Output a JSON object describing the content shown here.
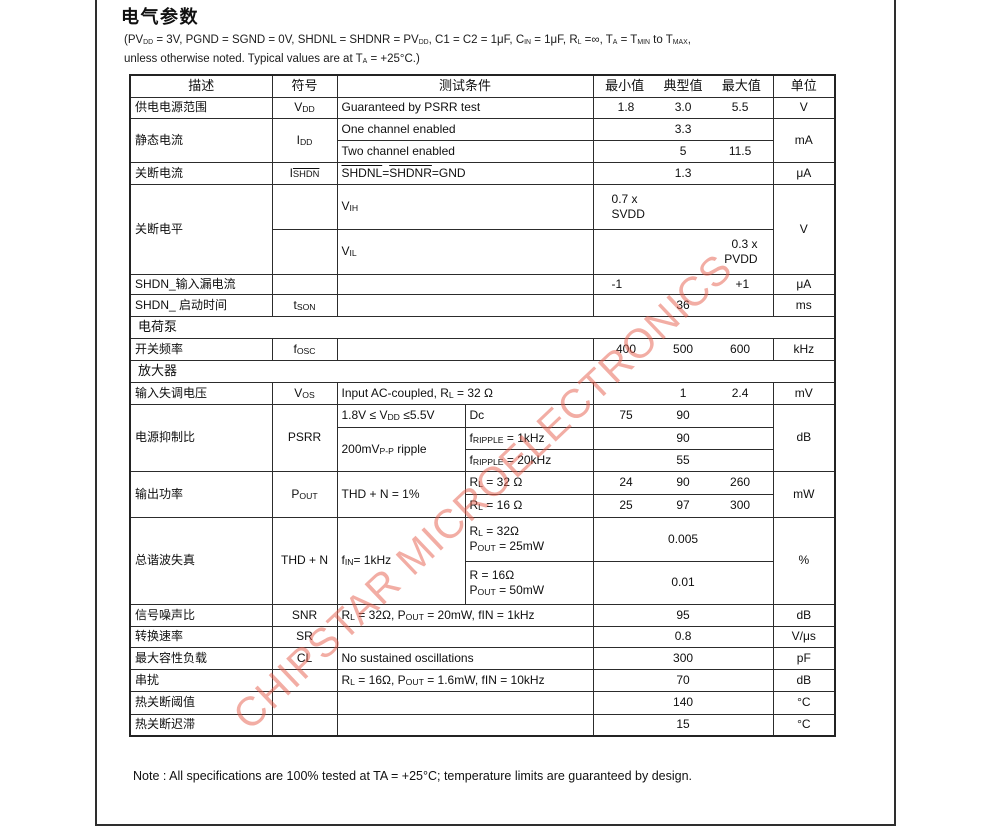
{
  "page": {
    "title": "电气参数",
    "subtitle_line1": [
      {
        "t": "(PV"
      },
      {
        "sub": "DD"
      },
      {
        "t": " = 3V, PGND = SGND = 0V, SHDNL = SHDNR = PV"
      },
      {
        "sub": "DD"
      },
      {
        "t": ", C1 = C2 = 1μF, C"
      },
      {
        "sub": "IN"
      },
      {
        "t": " = 1μF, R"
      },
      {
        "sub": "L"
      },
      {
        "t": " =∞, T"
      },
      {
        "sub": "A"
      },
      {
        "t": " = T"
      },
      {
        "sub": "MIN"
      },
      {
        "t": " to T"
      },
      {
        "sub": "MAX"
      },
      {
        "t": ","
      }
    ],
    "subtitle_line2": [
      {
        "t": "unless otherwise noted. Typical values are at T"
      },
      {
        "sub": "A"
      },
      {
        "t": " = +25°C.)"
      }
    ],
    "note": "Note : All specifications are 100% tested at TA = +25°C; temperature limits are guaranteed by design.",
    "watermark": "CHIPSTAR MICROELECTRONICS",
    "watermark_color": "#e75d4b"
  },
  "table": {
    "headers": {
      "desc": "描述",
      "symbol": "符号",
      "conditions": "测试条件",
      "min": "最小值",
      "typ": "典型值",
      "max": "最大值",
      "unit": "单位"
    },
    "sections": {
      "charge_pump": "电荷泵",
      "amplifier": "放大器"
    },
    "rows": {
      "vdd": {
        "desc": "供电电源范围",
        "symbol": [
          {
            "t": "V"
          },
          {
            "sub": "DD"
          }
        ],
        "cond": [
          {
            "t": "Guaranteed by PSRR test"
          }
        ],
        "min": "1.8",
        "typ": "3.0",
        "max": "5.5",
        "unit": "V"
      },
      "idd1": {
        "desc": "静态电流",
        "symbol": [
          {
            "t": "I"
          },
          {
            "sub": "DD"
          }
        ],
        "cond": [
          {
            "t": "One channel enabled"
          }
        ],
        "typ": "3.3",
        "unit": "mA"
      },
      "idd2": {
        "cond": [
          {
            "t": "Two channel enabled"
          }
        ],
        "typ": "5",
        "max": "11.5"
      },
      "ishdn": {
        "desc": "关断电流",
        "symbol": [
          {
            "t": "I"
          },
          {
            "ovs": "SHDN"
          }
        ],
        "cond": [
          {
            "ov": "SHDNL"
          },
          {
            "t": "="
          },
          {
            "ov": "SHDNR"
          },
          {
            "t": "=GND"
          }
        ],
        "typ": "1.3",
        "unit": "μA"
      },
      "vih": {
        "desc": "关断电平",
        "cond": [
          {
            "t": "V"
          },
          {
            "sub": "IH"
          }
        ],
        "min": "0.7 x\nSVDD",
        "unit": "V"
      },
      "vil": {
        "cond": [
          {
            "t": "V"
          },
          {
            "sub": "IL"
          }
        ],
        "max": "0.3 x\nPVDD"
      },
      "leak": {
        "desc": "SHDN_输入漏电流",
        "min": "-1",
        "max": "+1",
        "unit": "μA"
      },
      "tson": {
        "desc": "SHDN_ 启动时间",
        "symbol": [
          {
            "t": "t"
          },
          {
            "sub": "SON"
          }
        ],
        "typ": "36",
        "unit": "ms"
      },
      "fosc": {
        "desc": "开关频率",
        "symbol": [
          {
            "t": "f"
          },
          {
            "sub": "OSC"
          }
        ],
        "min": "400",
        "typ": "500",
        "max": "600",
        "unit": "kHz"
      },
      "vos": {
        "desc": "输入失调电压",
        "symbol": [
          {
            "t": "V"
          },
          {
            "sub": "OS"
          }
        ],
        "cond": [
          {
            "t": "Input AC-coupled, R"
          },
          {
            "sub": "L"
          },
          {
            "t": " = 32 Ω"
          }
        ],
        "typ": "1",
        "max": "2.4",
        "unit": "mV"
      },
      "psrr1": {
        "desc": "电源抑制比",
        "symbol": [
          {
            "t": "PSRR"
          }
        ],
        "condL": [
          {
            "t": "1.8V ≤ V"
          },
          {
            "sub": "DD"
          },
          {
            "t": " ≤5.5V"
          }
        ],
        "condR": [
          {
            "t": "Dc"
          }
        ],
        "min": "75",
        "typ": "90",
        "unit": "dB"
      },
      "psrr2": {
        "condL": [
          {
            "t": "200mV"
          },
          {
            "sub": "P-P"
          },
          {
            "t": " ripple"
          }
        ],
        "condR": [
          {
            "t": "f"
          },
          {
            "sub": "RIPPLE"
          },
          {
            "t": " = 1kHz"
          }
        ],
        "typ": "90"
      },
      "psrr3": {
        "condR": [
          {
            "t": "f"
          },
          {
            "sub": "RIPPLE"
          },
          {
            "t": " = 20kHz"
          }
        ],
        "typ": "55"
      },
      "pout1": {
        "desc": "输出功率",
        "symbol": [
          {
            "t": "P"
          },
          {
            "sub": "OUT"
          }
        ],
        "condL": [
          {
            "t": "THD + N = 1%"
          }
        ],
        "condR": [
          {
            "t": "R"
          },
          {
            "sub": "L"
          },
          {
            "t": " = 32 Ω"
          }
        ],
        "min": "24",
        "typ": "90",
        "max": "260",
        "unit": "mW"
      },
      "pout2": {
        "condR": [
          {
            "t": "R"
          },
          {
            "sub": "L"
          },
          {
            "t": " = 16 Ω"
          }
        ],
        "min": "25",
        "typ": "97",
        "max": "300"
      },
      "thd1": {
        "desc": "总谐波失真",
        "symbol": [
          {
            "t": "THD + N"
          }
        ],
        "condL": [
          {
            "t": "f"
          },
          {
            "sub": "IN"
          },
          {
            "t": "= 1kHz"
          }
        ],
        "condR": [
          {
            "t": "R"
          },
          {
            "sub": "L"
          },
          {
            "t": " = 32Ω"
          },
          {
            "br": 1
          },
          {
            "t": "P"
          },
          {
            "sub": "OUT"
          },
          {
            "t": " = 25mW"
          }
        ],
        "typ": "0.005",
        "unit": "%"
      },
      "thd2": {
        "condR": [
          {
            "t": "R  = 16Ω"
          },
          {
            "br": 1
          },
          {
            "t": "P"
          },
          {
            "sub": "OUT"
          },
          {
            "t": " = 50mW"
          }
        ],
        "typ": "0.01"
      },
      "snr": {
        "desc": "信号噪声比",
        "symbol": [
          {
            "t": "SNR"
          }
        ],
        "cond": [
          {
            "t": "R"
          },
          {
            "sub": "L"
          },
          {
            "t": " = 32Ω, P"
          },
          {
            "sub": "OUT"
          },
          {
            "t": " = 20mW, fIN = 1kHz"
          }
        ],
        "typ": "95",
        "unit": "dB"
      },
      "sr": {
        "desc": "转换速率",
        "symbol": [
          {
            "t": "SR"
          }
        ],
        "typ": "0.8",
        "unit": "V/μs"
      },
      "cl": {
        "desc": "最大容性负载",
        "symbol": [
          {
            "t": "CL"
          }
        ],
        "cond": [
          {
            "t": "No sustained oscillations"
          }
        ],
        "typ": "300",
        "unit": "pF"
      },
      "xtalk": {
        "desc": "串扰",
        "cond": [
          {
            "t": "R"
          },
          {
            "sub": "L"
          },
          {
            "t": " = 16Ω, P"
          },
          {
            "sub": "OUT"
          },
          {
            "t": " = 1.6mW, fIN = 10kHz"
          }
        ],
        "typ": "70",
        "unit": "dB"
      },
      "tsd1": {
        "desc": "热关断阈值",
        "typ": "140",
        "unit": "°C"
      },
      "tsd2": {
        "desc": "热关断迟滞",
        "typ": "15",
        "unit": "°C"
      }
    }
  }
}
